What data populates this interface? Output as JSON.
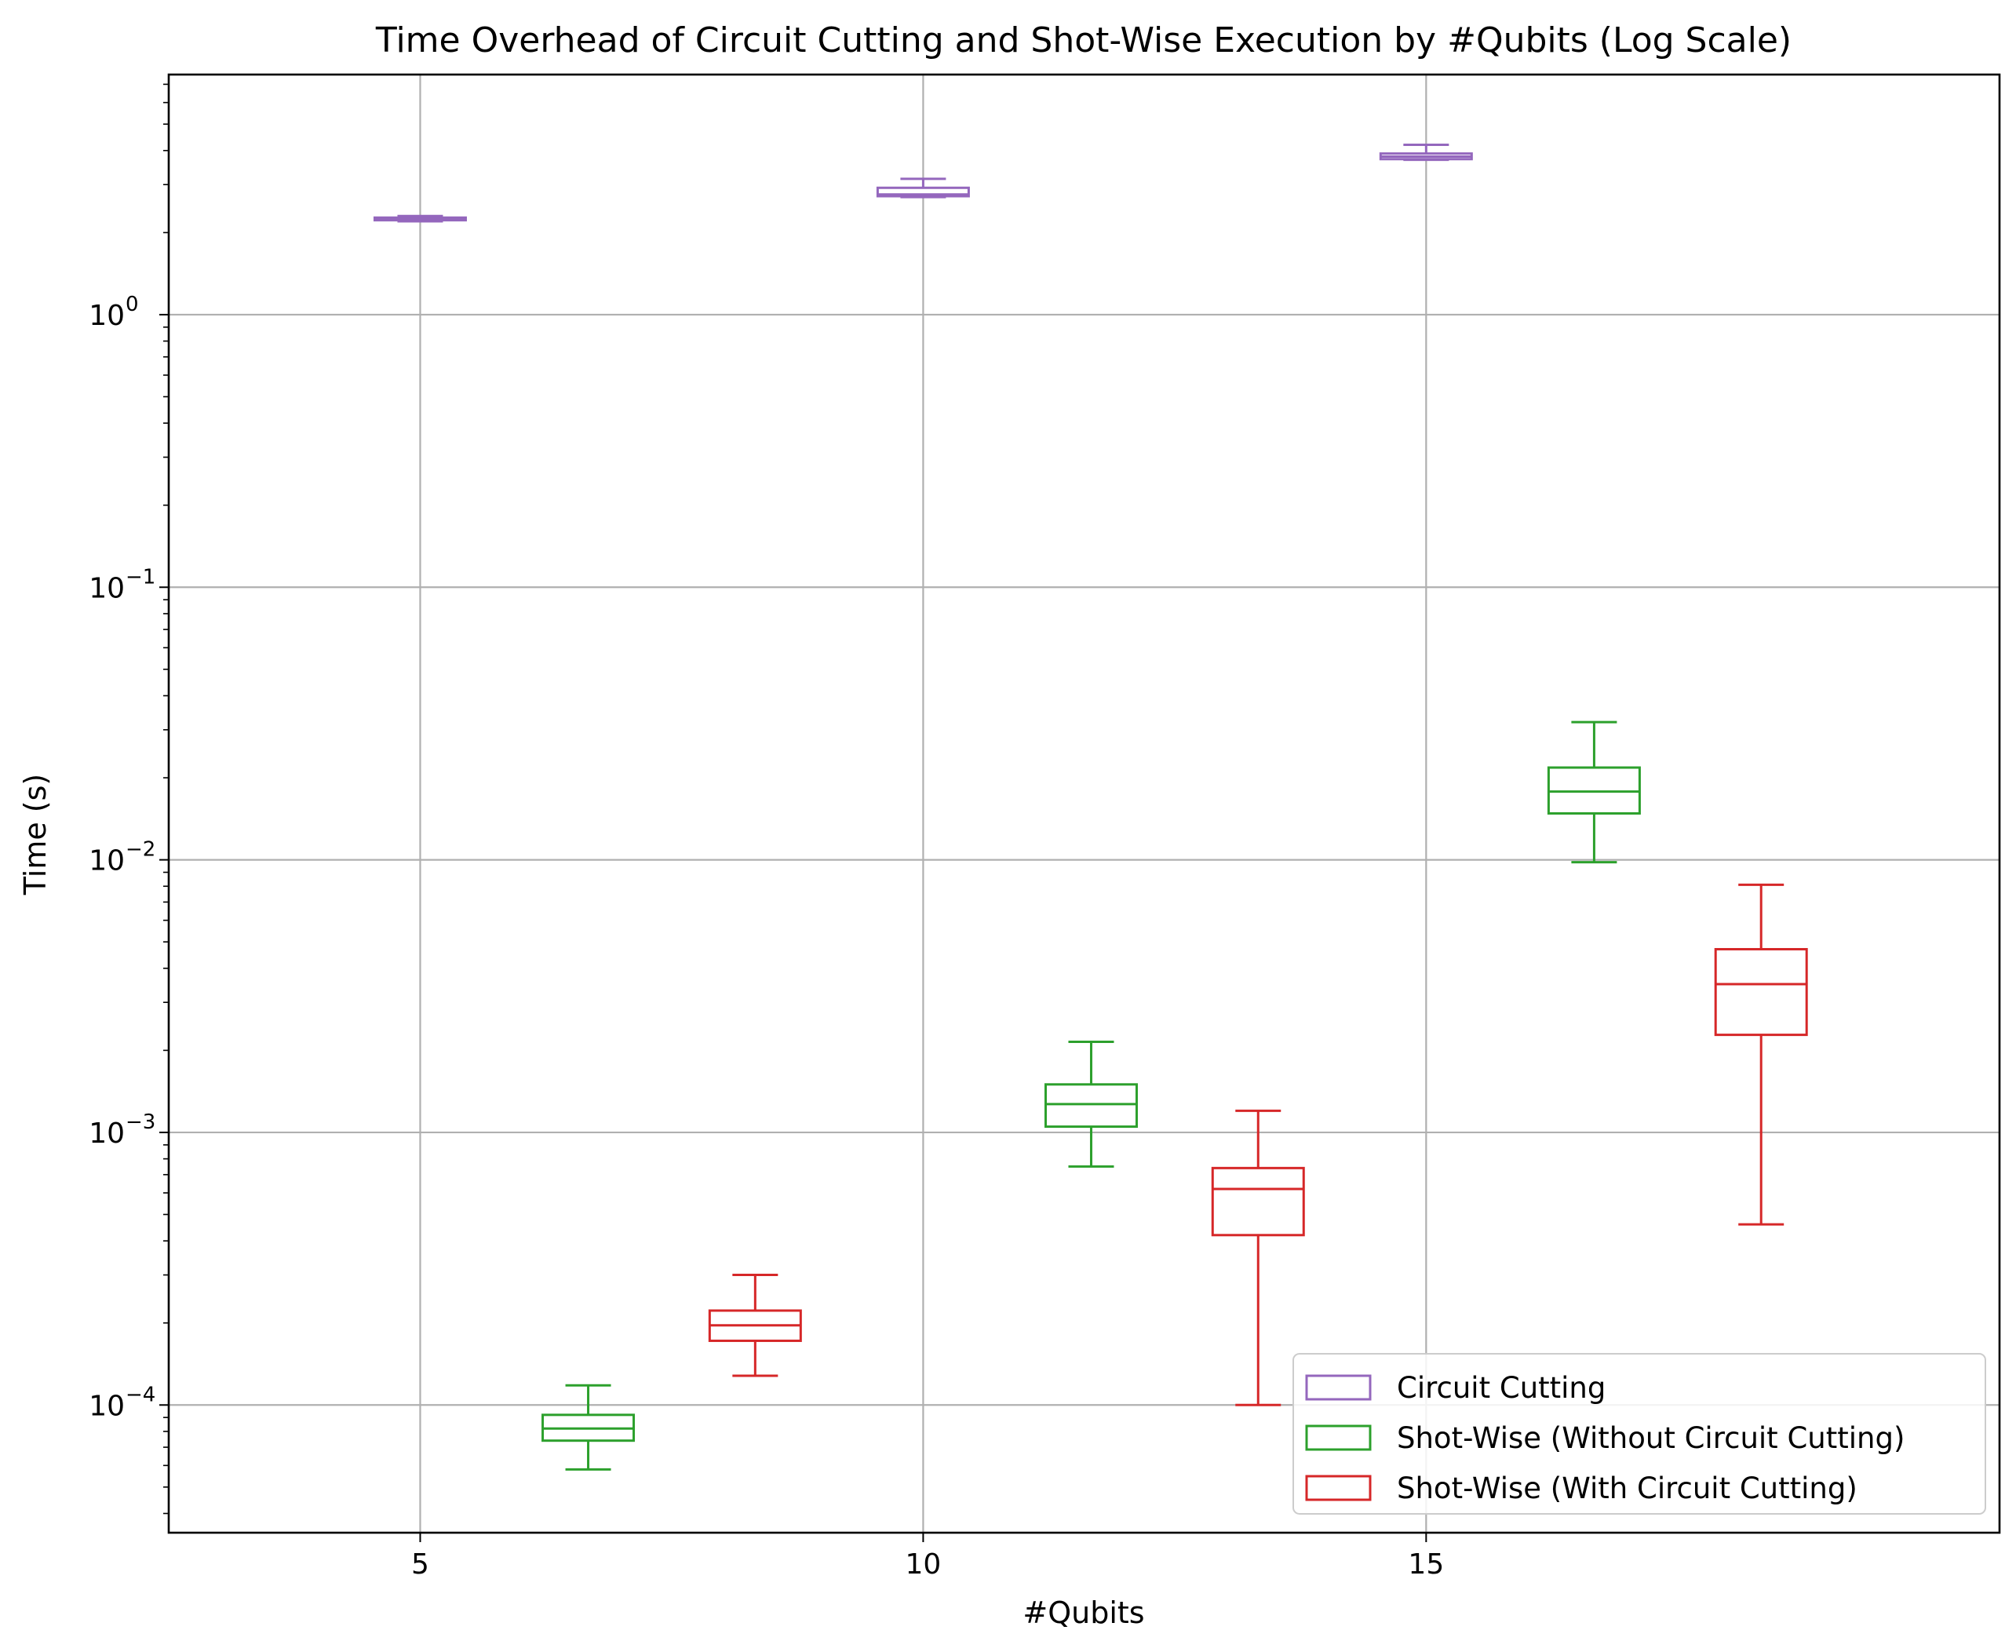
{
  "chart_data": {
    "type": "box",
    "title": "Time Overhead of Circuit Cutting and Shot-Wise Execution by #Qubits (Log Scale)",
    "xlabel": "#Qubits",
    "ylabel": "Time (s)",
    "y_scale": "log",
    "xlim": [
      2.5,
      20.7
    ],
    "ylim": [
      3.4e-05,
      7.6
    ],
    "grid": true,
    "legend_position": "lower right",
    "x_ticks": [
      {
        "value": 5,
        "label": "5"
      },
      {
        "value": 10,
        "label": "10"
      },
      {
        "value": 15,
        "label": "15"
      }
    ],
    "y_ticks": [
      {
        "value": 0.0001,
        "exp": "−4"
      },
      {
        "value": 0.001,
        "exp": "−3"
      },
      {
        "value": 0.01,
        "exp": "−2"
      },
      {
        "value": 0.1,
        "exp": "−1"
      },
      {
        "value": 1,
        "exp": "0"
      }
    ],
    "y_tick_base": "10",
    "series": [
      {
        "name": "Circuit Cutting",
        "color": "#9467bd",
        "boxes": [
          {
            "x": 5,
            "whisker_low": 2.2,
            "q1": 2.22,
            "median": 2.24,
            "q3": 2.27,
            "whisker_high": 2.3
          },
          {
            "x": 10,
            "whisker_low": 2.7,
            "q1": 2.72,
            "median": 2.76,
            "q3": 2.92,
            "whisker_high": 3.15
          },
          {
            "x": 15,
            "whisker_low": 3.7,
            "q1": 3.72,
            "median": 3.8,
            "q3": 3.9,
            "whisker_high": 4.2
          }
        ]
      },
      {
        "name": "Shot-Wise (Without Circuit Cutting)",
        "color": "#2ca02c",
        "boxes": [
          {
            "x": 6.67,
            "whisker_low": 5.8e-05,
            "q1": 7.4e-05,
            "median": 8.2e-05,
            "q3": 9.2e-05,
            "whisker_high": 0.000118
          },
          {
            "x": 11.67,
            "whisker_low": 0.00075,
            "q1": 0.00105,
            "median": 0.00127,
            "q3": 0.0015,
            "whisker_high": 0.00215
          },
          {
            "x": 16.67,
            "whisker_low": 0.0098,
            "q1": 0.0148,
            "median": 0.0178,
            "q3": 0.0218,
            "whisker_high": 0.032
          }
        ]
      },
      {
        "name": "Shot-Wise (With Circuit Cutting)",
        "color": "#d62728",
        "boxes": [
          {
            "x": 8.33,
            "whisker_low": 0.000128,
            "q1": 0.000172,
            "median": 0.000196,
            "q3": 0.000222,
            "whisker_high": 0.0003
          },
          {
            "x": 13.33,
            "whisker_low": 0.0001,
            "q1": 0.00042,
            "median": 0.00062,
            "q3": 0.00074,
            "whisker_high": 0.0012
          },
          {
            "x": 18.33,
            "whisker_low": 0.00046,
            "q1": 0.00228,
            "median": 0.0035,
            "q3": 0.0047,
            "whisker_high": 0.0081
          }
        ]
      }
    ]
  }
}
